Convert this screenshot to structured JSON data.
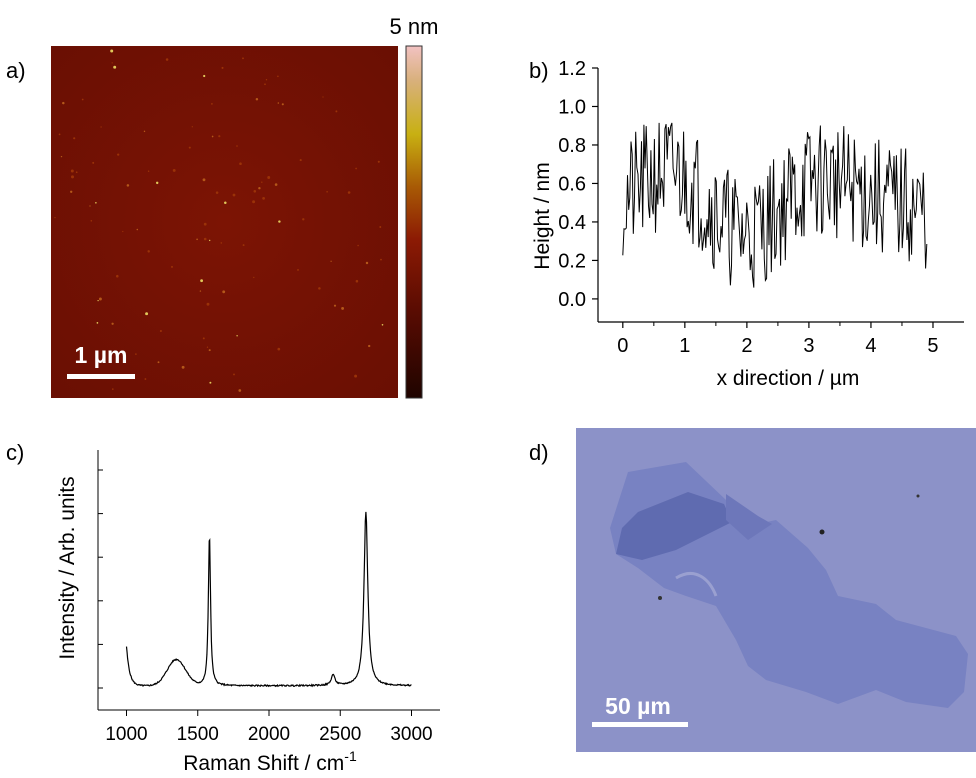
{
  "panels": {
    "a": {
      "label": "a)",
      "colorbar_max": "5 nm",
      "scalebar": "1 µm"
    },
    "b": {
      "label": "b)"
    },
    "c": {
      "label": "c)"
    },
    "d": {
      "label": "d)",
      "scalebar": "50 µm"
    }
  },
  "chart_data": [
    {
      "panel": "b",
      "type": "line",
      "xlabel": "x direction / µm",
      "ylabel": "Height / nm",
      "xlim": [
        -0.4,
        5.5
      ],
      "ylim": [
        -0.12,
        1.2
      ],
      "xticks": [
        0,
        1,
        2,
        3,
        4,
        5
      ],
      "yticks": [
        0.0,
        0.2,
        0.4,
        0.6,
        0.8,
        1.0,
        1.2
      ],
      "ytick_labels": [
        "0.0",
        "0.2",
        "0.4",
        "0.6",
        "0.8",
        "1.0",
        "1.2"
      ],
      "x_range": [
        0,
        4.9
      ],
      "y_range_estimate": [
        0.0,
        1.02
      ],
      "grid": false
    },
    {
      "panel": "c",
      "type": "line",
      "xlabel": "Raman Shift / cm",
      "xlabel_superscript": "-1",
      "ylabel": "Intensity / Arb. units",
      "xlim": [
        800,
        3200
      ],
      "xticks": [
        1000,
        1500,
        2000,
        2500,
        3000
      ],
      "grid": false,
      "peaks": [
        {
          "x": 1350,
          "y": 0.12
        },
        {
          "x": 1582,
          "y": 0.72
        },
        {
          "x": 2450,
          "y": 0.05
        },
        {
          "x": 2680,
          "y": 0.82
        }
      ]
    }
  ]
}
